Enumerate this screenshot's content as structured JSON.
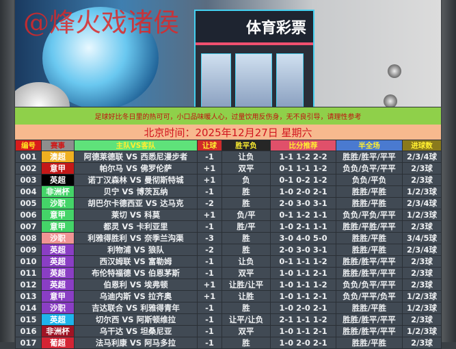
{
  "banner": {
    "watermark": "@烽火戏诸侯",
    "store_sign": "体育彩票"
  },
  "notice": "足球好比冬日里的热可可，小口品味暖人心，过量饮用反伤身，无不良引导，请理性参考",
  "date": "北京时间：2025年12月27日  星期六",
  "headers": [
    {
      "label": "编号",
      "bg": "#d81c1c",
      "color": "#ffe020"
    },
    {
      "label": "赛事",
      "bg": "#8e8e8e",
      "color": "#d01818"
    },
    {
      "label": "主队VS客队",
      "bg": "#5fe27a",
      "color": "#ffef30"
    },
    {
      "label": "让球",
      "bg": "#d02a2a",
      "color": "#ffef30"
    },
    {
      "label": "胜平负",
      "bg": "#262626",
      "color": "#ffef30"
    },
    {
      "label": "比分推荐",
      "bg": "#e0506a",
      "color": "#ffef30"
    },
    {
      "label": "半全场",
      "bg": "#4a7ad0",
      "color": "#ffef30"
    },
    {
      "label": "进球数",
      "bg": "#8a7a1c",
      "color": "#ffef30"
    }
  ],
  "rows": [
    {
      "no": "001",
      "league": "澳超",
      "league_bg": "#f0b020",
      "match": "阿德莱德联 VS 西悉尼漫步者",
      "handicap": "-1",
      "result": "让负",
      "score": "1-1 1-2 2-2",
      "half_full": "胜胜/胜平/平平",
      "goals": "2/3/4球"
    },
    {
      "no": "002",
      "league": "意甲",
      "league_bg": "#c41818",
      "match": "帕尔马 VS 佛罗伦萨",
      "handicap": "+1",
      "result": "双平",
      "score": "0-1 1-1 1-2",
      "half_full": "负负/负平/平平",
      "goals": "2/3球"
    },
    {
      "no": "003",
      "league": "英超",
      "league_bg": "#000000",
      "match": "诺丁汉森林 VS 曼彻斯特城",
      "handicap": "+1",
      "result": "负",
      "score": "0-1 0-2 1-2",
      "half_full": "负负/平负",
      "goals": "2/3球"
    },
    {
      "no": "004",
      "league": "非洲杯",
      "league_bg": "#44d468",
      "match": "贝宁 VS 博茨瓦纳",
      "handicap": "-1",
      "result": "胜",
      "score": "1-0 2-0 2-1",
      "half_full": "胜胜/平胜",
      "goals": "1/2/3球"
    },
    {
      "no": "005",
      "league": "沙职",
      "league_bg": "#44d468",
      "match": "胡巴尔卡德西亚 VS 达马克",
      "handicap": "-2",
      "result": "胜",
      "score": "2-0 3-0 3-1",
      "half_full": "胜胜/平胜",
      "goals": "2/3/4球"
    },
    {
      "no": "006",
      "league": "意甲",
      "league_bg": "#44d468",
      "match": "莱切 VS 科莫",
      "handicap": "+1",
      "result": "负/平",
      "score": "0-1 1-2 1-1",
      "half_full": "负负/平负/平平",
      "goals": "1/2/3球"
    },
    {
      "no": "007",
      "league": "意甲",
      "league_bg": "#44d468",
      "match": "都灵 VS 卡利亚里",
      "handicap": "-1",
      "result": "胜/平",
      "score": "1-0 2-1 1-1",
      "half_full": "胜胜/平胜/平平",
      "goals": "2/3球"
    },
    {
      "no": "008",
      "league": "沙职",
      "league_bg": "#f09494",
      "match": "利雅得胜利 VS 奈季兰沟渠",
      "handicap": "-3",
      "result": "胜",
      "score": "3-0 4-0 5-0",
      "half_full": "胜胜/平胜",
      "goals": "3/4/5球"
    },
    {
      "no": "009",
      "league": "英超",
      "league_bg": "#8a3ec4",
      "match": "利物浦 VS 狼队",
      "handicap": "-2",
      "result": "胜",
      "score": "2-0 3-0 3-1",
      "half_full": "胜胜/平胜",
      "goals": "2/3/4球"
    },
    {
      "no": "010",
      "league": "英超",
      "league_bg": "#8a3ec4",
      "match": "西汉姆联 VS 富勒姆",
      "handicap": "-1",
      "result": "让负",
      "score": "0-1 1-1 1-2",
      "half_full": "胜胜/胜平/平平",
      "goals": "2/3球"
    },
    {
      "no": "011",
      "league": "英超",
      "league_bg": "#8a3ec4",
      "match": "布伦特福德 VS 伯恩茅斯",
      "handicap": "-1",
      "result": "双平",
      "score": "1-0 1-1 2-1",
      "half_full": "胜胜/胜平/平平",
      "goals": "2/3球"
    },
    {
      "no": "012",
      "league": "英超",
      "league_bg": "#8a3ec4",
      "match": "伯恩利 VS 埃弗顿",
      "handicap": "+1",
      "result": "让胜/让平",
      "score": "1-0 1-1 1-2",
      "half_full": "负负/负平/平平",
      "goals": "2/3球"
    },
    {
      "no": "013",
      "league": "意甲",
      "league_bg": "#8a3ec4",
      "match": "乌迪内斯 VS 拉齐奥",
      "handicap": "+1",
      "result": "让胜",
      "score": "1-0 1-1 2-1",
      "half_full": "负负/平平/负平",
      "goals": "1/2/3球"
    },
    {
      "no": "014",
      "league": "沙职",
      "league_bg": "#8a3ec4",
      "match": "吉达联合 VS 利雅得青年",
      "handicap": "-1",
      "result": "胜",
      "score": "1-0 2-0 2-1",
      "half_full": "胜胜/平胜",
      "goals": "1/2/3球"
    },
    {
      "no": "015",
      "league": "英超",
      "league_bg": "#1eb4ec",
      "match": "切尔西 VS 阿斯顿维拉",
      "handicap": "-1",
      "result": "让平/让负",
      "score": "2-1 1-1 1-2",
      "half_full": "胜胜/胜平/平平",
      "goals": "2/3球"
    },
    {
      "no": "016",
      "league": "非洲杯",
      "league_bg": "#a01424",
      "match": "乌干达 VS 坦桑尼亚",
      "handicap": "-1",
      "result": "双平",
      "score": "1-0 1-1 2-1",
      "half_full": "胜胜/胜平/平平",
      "goals": "1/2/3球"
    },
    {
      "no": "017",
      "league": "葡超",
      "league_bg": "#d42434",
      "match": "法马利康 VS 阿马多拉",
      "handicap": "-1",
      "result": "胜",
      "score": "1-0 2-0 2-1",
      "half_full": "胜胜/平胜",
      "goals": "2/3球"
    }
  ]
}
